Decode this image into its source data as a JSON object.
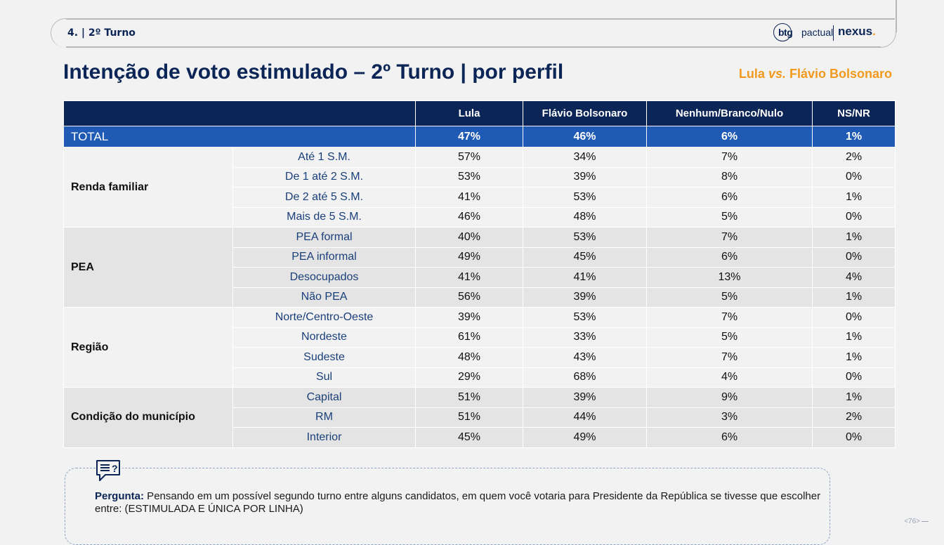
{
  "header": {
    "section": "4. | 2º Turno",
    "logo_btg": "btg",
    "logo_pactual": "pactual",
    "logo_nexus": "nexus",
    "logo_nexus_dot": "."
  },
  "title": "Intenção de voto estimulado – 2º Turno | por perfil",
  "matchup": {
    "left": "Lula ",
    "vs": "vs.",
    "right": " Flávio Bolsonaro"
  },
  "table": {
    "columns": [
      "Lula",
      "Flávio Bolsonaro",
      "Nenhum/Branco/Nulo",
      "NS/NR"
    ],
    "total": {
      "label": "TOTAL",
      "values": [
        "47%",
        "46%",
        "6%",
        "1%"
      ]
    },
    "groups": [
      {
        "label": "Renda familiar",
        "rows": [
          {
            "sub": "Até 1 S.M.",
            "values": [
              "57%",
              "34%",
              "7%",
              "2%"
            ]
          },
          {
            "sub": "De 1 até 2 S.M.",
            "values": [
              "53%",
              "39%",
              "8%",
              "0%"
            ]
          },
          {
            "sub": "De 2 até 5 S.M.",
            "values": [
              "41%",
              "53%",
              "6%",
              "1%"
            ]
          },
          {
            "sub": "Mais de 5 S.M.",
            "values": [
              "46%",
              "48%",
              "5%",
              "0%"
            ]
          }
        ]
      },
      {
        "label": "PEA",
        "rows": [
          {
            "sub": "PEA formal",
            "values": [
              "40%",
              "53%",
              "7%",
              "1%"
            ]
          },
          {
            "sub": "PEA informal",
            "values": [
              "49%",
              "45%",
              "6%",
              "0%"
            ]
          },
          {
            "sub": "Desocupados",
            "values": [
              "41%",
              "41%",
              "13%",
              "4%"
            ]
          },
          {
            "sub": "Não PEA",
            "values": [
              "56%",
              "39%",
              "5%",
              "1%"
            ]
          }
        ]
      },
      {
        "label": "Região",
        "rows": [
          {
            "sub": "Norte/Centro-Oeste",
            "values": [
              "39%",
              "53%",
              "7%",
              "0%"
            ]
          },
          {
            "sub": "Nordeste",
            "values": [
              "61%",
              "33%",
              "5%",
              "1%"
            ]
          },
          {
            "sub": "Sudeste",
            "values": [
              "48%",
              "43%",
              "7%",
              "1%"
            ]
          },
          {
            "sub": "Sul",
            "values": [
              "29%",
              "68%",
              "4%",
              "0%"
            ]
          }
        ]
      },
      {
        "label": "Condição do município",
        "rows": [
          {
            "sub": "Capital",
            "values": [
              "51%",
              "39%",
              "9%",
              "1%"
            ]
          },
          {
            "sub": "RM",
            "values": [
              "51%",
              "44%",
              "3%",
              "2%"
            ]
          },
          {
            "sub": "Interior",
            "values": [
              "45%",
              "49%",
              "6%",
              "0%"
            ]
          }
        ]
      }
    ]
  },
  "question": {
    "icon": "chat-question-icon",
    "label": "Pergunta:",
    "text": " Pensando em um possível segundo turno entre alguns candidatos, em quem você votaria para Presidente da República se tivesse que escolher entre: (ESTIMULADA E ÚNICA POR LINHA)"
  },
  "page_number": "<76>",
  "colors": {
    "navy": "#0b2556",
    "blue": "#1f5ab5",
    "orange": "#f39a1e"
  }
}
